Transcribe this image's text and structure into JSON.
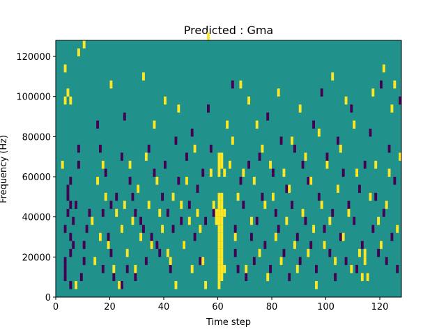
{
  "chart_data": {
    "type": "heatmap",
    "title": "Predicted : Gma",
    "xlabel": "Time step",
    "ylabel": "Frequency (Hz)",
    "xlim": [
      0,
      128
    ],
    "ylim": [
      0,
      128000
    ],
    "x_ticks": [
      0,
      20,
      40,
      60,
      80,
      100,
      120
    ],
    "y_ticks": [
      0,
      20000,
      40000,
      60000,
      80000,
      100000,
      120000
    ],
    "x_tick_labels": [
      "0",
      "20",
      "40",
      "60",
      "80",
      "100",
      "120"
    ],
    "y_tick_labels": [
      "0",
      "20000",
      "40000",
      "60000",
      "80000",
      "100000",
      "120000"
    ],
    "grid": false,
    "legend": "none",
    "value_levels": [
      -1,
      0,
      1
    ],
    "colors": {
      "low": "#440154",
      "mid": "#21918c",
      "high": "#fde725"
    },
    "background_value": 0,
    "low_cells": [
      [
        3,
        8000
      ],
      [
        3,
        12000
      ],
      [
        3,
        16000
      ],
      [
        3,
        32000
      ],
      [
        4,
        40000
      ],
      [
        4,
        48000
      ],
      [
        4,
        52000
      ],
      [
        5,
        4000
      ],
      [
        5,
        20000
      ],
      [
        5,
        28000
      ],
      [
        5,
        44000
      ],
      [
        5,
        56000
      ],
      [
        6,
        24000
      ],
      [
        6,
        36000
      ],
      [
        7,
        44000
      ],
      [
        8,
        64000
      ],
      [
        8,
        72000
      ],
      [
        9,
        8000
      ],
      [
        10,
        16000
      ],
      [
        10,
        24000
      ],
      [
        11,
        32000
      ],
      [
        12,
        40000
      ],
      [
        15,
        84000
      ],
      [
        16,
        72000
      ],
      [
        17,
        40000
      ],
      [
        17,
        12000
      ],
      [
        18,
        60000
      ],
      [
        19,
        28000
      ],
      [
        20,
        44000
      ],
      [
        20,
        20000
      ],
      [
        21,
        8000
      ],
      [
        22,
        48000
      ],
      [
        24,
        68000
      ],
      [
        24,
        4000
      ],
      [
        25,
        88000
      ],
      [
        26,
        12000
      ],
      [
        27,
        56000
      ],
      [
        28,
        48000
      ],
      [
        29,
        8000
      ],
      [
        29,
        40000
      ],
      [
        31,
        36000
      ],
      [
        32,
        32000
      ],
      [
        33,
        16000
      ],
      [
        34,
        72000
      ],
      [
        35,
        28000
      ],
      [
        36,
        60000
      ],
      [
        37,
        24000
      ],
      [
        38,
        20000
      ],
      [
        39,
        48000
      ],
      [
        40,
        64000
      ],
      [
        41,
        40000
      ],
      [
        42,
        12000
      ],
      [
        43,
        32000
      ],
      [
        44,
        76000
      ],
      [
        45,
        56000
      ],
      [
        46,
        36000
      ],
      [
        47,
        24000
      ],
      [
        48,
        68000
      ],
      [
        49,
        44000
      ],
      [
        50,
        80000
      ],
      [
        51,
        28000
      ],
      [
        52,
        52000
      ],
      [
        53,
        16000
      ],
      [
        54,
        60000
      ],
      [
        55,
        36000
      ],
      [
        56,
        92000
      ],
      [
        57,
        72000
      ],
      [
        58,
        40000
      ],
      [
        65,
        104000
      ],
      [
        66,
        32000
      ],
      [
        66,
        20000
      ],
      [
        67,
        12000
      ],
      [
        68,
        56000
      ],
      [
        69,
        44000
      ],
      [
        70,
        8000
      ],
      [
        71,
        64000
      ],
      [
        72,
        28000
      ],
      [
        73,
        16000
      ],
      [
        74,
        36000
      ],
      [
        75,
        68000
      ],
      [
        76,
        48000
      ],
      [
        77,
        24000
      ],
      [
        78,
        88000
      ],
      [
        79,
        12000
      ],
      [
        80,
        60000
      ],
      [
        81,
        40000
      ],
      [
        82,
        32000
      ],
      [
        83,
        76000
      ],
      [
        84,
        20000
      ],
      [
        85,
        52000
      ],
      [
        86,
        8000
      ],
      [
        87,
        44000
      ],
      [
        88,
        72000
      ],
      [
        89,
        28000
      ],
      [
        90,
        16000
      ],
      [
        91,
        64000
      ],
      [
        92,
        36000
      ],
      [
        93,
        56000
      ],
      [
        94,
        24000
      ],
      [
        95,
        84000
      ],
      [
        96,
        12000
      ],
      [
        97,
        48000
      ],
      [
        98,
        100000
      ],
      [
        99,
        32000
      ],
      [
        100,
        68000
      ],
      [
        101,
        20000
      ],
      [
        102,
        40000
      ],
      [
        103,
        8000
      ],
      [
        104,
        76000
      ],
      [
        105,
        28000
      ],
      [
        106,
        60000
      ],
      [
        107,
        16000
      ],
      [
        108,
        44000
      ],
      [
        109,
        92000
      ],
      [
        110,
        36000
      ],
      [
        111,
        12000
      ],
      [
        112,
        52000
      ],
      [
        113,
        24000
      ],
      [
        114,
        64000
      ],
      [
        115,
        8000
      ],
      [
        116,
        80000
      ],
      [
        117,
        32000
      ],
      [
        118,
        48000
      ],
      [
        119,
        20000
      ],
      [
        120,
        104000
      ],
      [
        121,
        40000
      ],
      [
        122,
        16000
      ],
      [
        123,
        72000
      ],
      [
        124,
        28000
      ],
      [
        125,
        56000
      ],
      [
        126,
        12000
      ],
      [
        127,
        96000
      ]
    ],
    "high_cells": [
      [
        2,
        64000
      ],
      [
        3,
        112000
      ],
      [
        3,
        96000
      ],
      [
        4,
        100000
      ],
      [
        5,
        96000
      ],
      [
        7,
        4000
      ],
      [
        8,
        120000
      ],
      [
        10,
        124000
      ],
      [
        13,
        36000
      ],
      [
        14,
        16000
      ],
      [
        15,
        56000
      ],
      [
        16,
        28000
      ],
      [
        17,
        64000
      ],
      [
        18,
        48000
      ],
      [
        19,
        24000
      ],
      [
        20,
        104000
      ],
      [
        21,
        12000
      ],
      [
        22,
        40000
      ],
      [
        23,
        4000
      ],
      [
        24,
        32000
      ],
      [
        25,
        44000
      ],
      [
        26,
        20000
      ],
      [
        27,
        64000
      ],
      [
        28,
        36000
      ],
      [
        29,
        12000
      ],
      [
        30,
        52000
      ],
      [
        31,
        28000
      ],
      [
        32,
        108000
      ],
      [
        33,
        68000
      ],
      [
        34,
        44000
      ],
      [
        35,
        24000
      ],
      [
        36,
        84000
      ],
      [
        37,
        56000
      ],
      [
        38,
        40000
      ],
      [
        39,
        32000
      ],
      [
        40,
        96000
      ],
      [
        41,
        20000
      ],
      [
        42,
        16000
      ],
      [
        43,
        48000
      ],
      [
        44,
        4000
      ],
      [
        45,
        92000
      ],
      [
        46,
        44000
      ],
      [
        47,
        24000
      ],
      [
        48,
        56000
      ],
      [
        49,
        36000
      ],
      [
        50,
        12000
      ],
      [
        51,
        72000
      ],
      [
        52,
        40000
      ],
      [
        53,
        32000
      ],
      [
        54,
        16000
      ],
      [
        55,
        4000
      ],
      [
        56,
        128000
      ],
      [
        57,
        60000
      ],
      [
        58,
        44000
      ],
      [
        59,
        40000
      ],
      [
        59,
        36000
      ],
      [
        60,
        64000
      ],
      [
        60,
        68000
      ],
      [
        60,
        60000
      ],
      [
        60,
        48000
      ],
      [
        60,
        44000
      ],
      [
        60,
        40000
      ],
      [
        60,
        36000
      ],
      [
        60,
        32000
      ],
      [
        60,
        28000
      ],
      [
        60,
        24000
      ],
      [
        60,
        20000
      ],
      [
        60,
        16000
      ],
      [
        60,
        12000
      ],
      [
        60,
        8000
      ],
      [
        60,
        4000
      ],
      [
        61,
        68000
      ],
      [
        61,
        64000
      ],
      [
        61,
        48000
      ],
      [
        61,
        44000
      ],
      [
        61,
        40000
      ],
      [
        61,
        36000
      ],
      [
        61,
        32000
      ],
      [
        61,
        28000
      ],
      [
        61,
        24000
      ],
      [
        61,
        20000
      ],
      [
        61,
        16000
      ],
      [
        61,
        12000
      ],
      [
        61,
        8000
      ],
      [
        62,
        60000
      ],
      [
        62,
        40000
      ],
      [
        62,
        12000
      ],
      [
        63,
        84000
      ],
      [
        64,
        64000
      ],
      [
        65,
        76000
      ],
      [
        66,
        28000
      ],
      [
        67,
        48000
      ],
      [
        68,
        104000
      ],
      [
        69,
        60000
      ],
      [
        70,
        12000
      ],
      [
        71,
        96000
      ],
      [
        72,
        36000
      ],
      [
        73,
        56000
      ],
      [
        74,
        84000
      ],
      [
        75,
        20000
      ],
      [
        76,
        72000
      ],
      [
        77,
        44000
      ],
      [
        78,
        8000
      ],
      [
        79,
        64000
      ],
      [
        80,
        48000
      ],
      [
        81,
        28000
      ],
      [
        82,
        100000
      ],
      [
        83,
        16000
      ],
      [
        84,
        60000
      ],
      [
        85,
        36000
      ],
      [
        86,
        52000
      ],
      [
        87,
        76000
      ],
      [
        88,
        24000
      ],
      [
        89,
        12000
      ],
      [
        90,
        92000
      ],
      [
        91,
        40000
      ],
      [
        92,
        68000
      ],
      [
        93,
        20000
      ],
      [
        94,
        56000
      ],
      [
        95,
        32000
      ],
      [
        96,
        4000
      ],
      [
        97,
        80000
      ],
      [
        98,
        44000
      ],
      [
        99,
        24000
      ],
      [
        100,
        64000
      ],
      [
        101,
        36000
      ],
      [
        102,
        108000
      ],
      [
        103,
        16000
      ],
      [
        104,
        52000
      ],
      [
        105,
        72000
      ],
      [
        106,
        28000
      ],
      [
        107,
        96000
      ],
      [
        108,
        40000
      ],
      [
        109,
        12000
      ],
      [
        110,
        84000
      ],
      [
        111,
        60000
      ],
      [
        112,
        20000
      ],
      [
        113,
        8000
      ],
      [
        114,
        20000
      ],
      [
        114,
        16000
      ],
      [
        115,
        8000
      ],
      [
        116,
        48000
      ],
      [
        117,
        100000
      ],
      [
        118,
        64000
      ],
      [
        119,
        36000
      ],
      [
        120,
        24000
      ],
      [
        121,
        112000
      ],
      [
        122,
        44000
      ],
      [
        123,
        60000
      ],
      [
        124,
        92000
      ],
      [
        125,
        104000
      ],
      [
        126,
        32000
      ],
      [
        127,
        68000
      ]
    ]
  }
}
